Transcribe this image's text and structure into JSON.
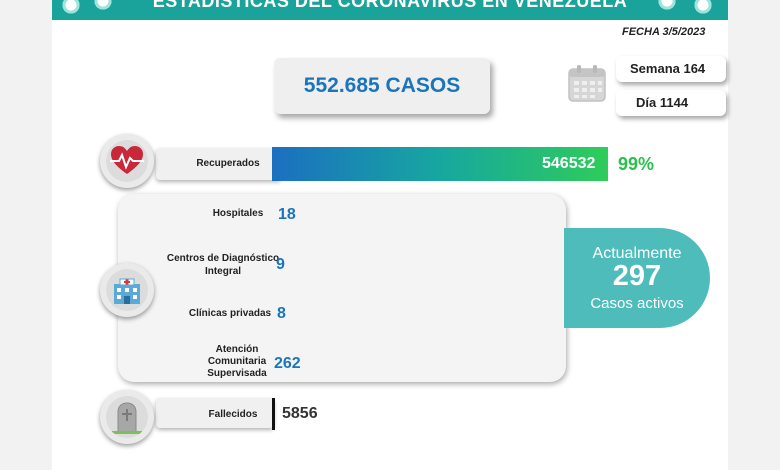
{
  "banner": {
    "title": "ESTADÍSTICAS DEL CORONAVIRUS EN VENEZUELA"
  },
  "fecha": "FECHA 3/5/2023",
  "total_casos": "552.685 CASOS",
  "semana": "Semana 164",
  "dia": "Día 1144",
  "recuperados": {
    "label": "Recuperados",
    "value": "546532",
    "percent": "99%"
  },
  "hospitalizacion": [
    {
      "label": "Hospitales",
      "value": "18"
    },
    {
      "label": "Centros de Diagnóstico Integral",
      "value": "9"
    },
    {
      "label": "Clínicas privadas",
      "value": "8"
    },
    {
      "label": "Atención Comunitaria Supervisada",
      "value": "262"
    }
  ],
  "activos": {
    "line1": "Actualmente",
    "value": "297",
    "line2": "Casos activos"
  },
  "fallecidos": {
    "label": "Fallecidos",
    "value": "5856"
  },
  "colors": {
    "teal": "#1aa39a",
    "blue": "#1b75bb",
    "green": "#2dbe4f",
    "activos_bg": "#4fbcbc"
  },
  "icons": [
    "calendar-icon",
    "heart-pulse-icon",
    "hospital-icon",
    "tombstone-icon",
    "virus-icon"
  ]
}
